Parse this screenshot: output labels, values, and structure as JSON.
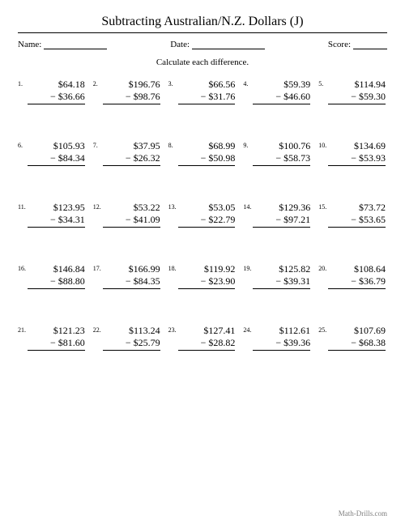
{
  "title": "Subtracting Australian/N.Z. Dollars (J)",
  "labels": {
    "name": "Name:",
    "date": "Date:",
    "score": "Score:"
  },
  "instructions": "Calculate each difference.",
  "currency": "$",
  "minus": "−",
  "problems": [
    {
      "n": "1.",
      "a": "64.18",
      "b": "36.66"
    },
    {
      "n": "2.",
      "a": "196.76",
      "b": "98.76"
    },
    {
      "n": "3.",
      "a": "66.56",
      "b": "31.76"
    },
    {
      "n": "4.",
      "a": "59.39",
      "b": "46.60"
    },
    {
      "n": "5.",
      "a": "114.94",
      "b": "59.30"
    },
    {
      "n": "6.",
      "a": "105.93",
      "b": "84.34"
    },
    {
      "n": "7.",
      "a": "37.95",
      "b": "26.32"
    },
    {
      "n": "8.",
      "a": "68.99",
      "b": "50.98"
    },
    {
      "n": "9.",
      "a": "100.76",
      "b": "58.73"
    },
    {
      "n": "10.",
      "a": "134.69",
      "b": "53.93"
    },
    {
      "n": "11.",
      "a": "123.95",
      "b": "34.31"
    },
    {
      "n": "12.",
      "a": "53.22",
      "b": "41.09"
    },
    {
      "n": "13.",
      "a": "53.05",
      "b": "22.79"
    },
    {
      "n": "14.",
      "a": "129.36",
      "b": "97.21"
    },
    {
      "n": "15.",
      "a": "73.72",
      "b": "53.65"
    },
    {
      "n": "16.",
      "a": "146.84",
      "b": "88.80"
    },
    {
      "n": "17.",
      "a": "166.99",
      "b": "84.35"
    },
    {
      "n": "18.",
      "a": "119.92",
      "b": "23.90"
    },
    {
      "n": "19.",
      "a": "125.82",
      "b": "39.31"
    },
    {
      "n": "20.",
      "a": "108.64",
      "b": "36.79"
    },
    {
      "n": "21.",
      "a": "121.23",
      "b": "81.60"
    },
    {
      "n": "22.",
      "a": "113.24",
      "b": "25.79"
    },
    {
      "n": "23.",
      "a": "127.41",
      "b": "28.82"
    },
    {
      "n": "24.",
      "a": "112.61",
      "b": "39.36"
    },
    {
      "n": "25.",
      "a": "107.69",
      "b": "68.38"
    }
  ],
  "footer": "Math-Drills.com"
}
